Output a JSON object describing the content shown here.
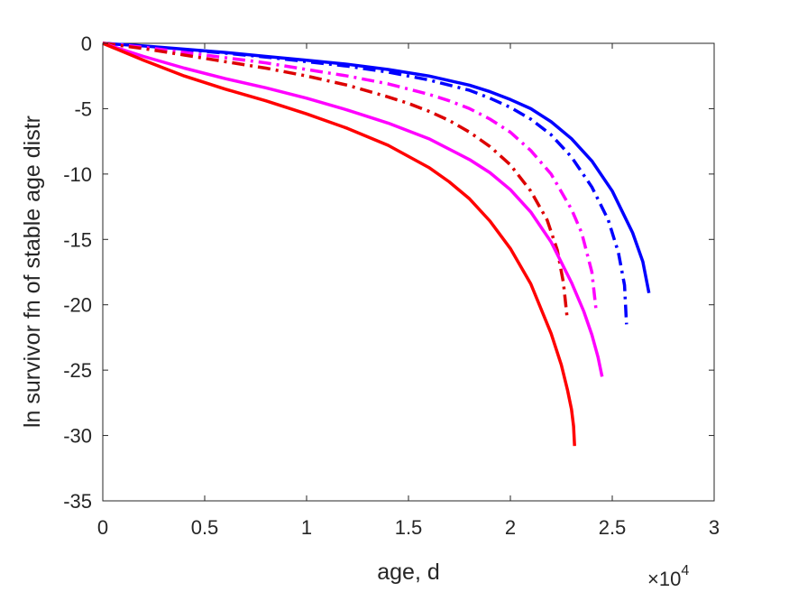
{
  "chart_data": {
    "type": "line",
    "title": "",
    "xlabel": "age, d",
    "ylabel": "ln survivor fn of stable age distr",
    "x_exponent_label": "×10",
    "x_exponent_power": "4",
    "xlim": [
      0,
      30000
    ],
    "ylim": [
      -35,
      0
    ],
    "x_tick_values": [
      0,
      5000,
      10000,
      15000,
      20000,
      25000,
      30000
    ],
    "x_tick_labels": [
      "0",
      "0.5",
      "1",
      "1.5",
      "2",
      "2.5",
      "3"
    ],
    "y_tick_values": [
      0,
      -5,
      -10,
      -15,
      -20,
      -25,
      -30,
      -35
    ],
    "y_tick_labels": [
      "0",
      "-5",
      "-10",
      "-15",
      "-20",
      "-25",
      "-30",
      "-35"
    ],
    "grid": false,
    "legend": "none",
    "series": [
      {
        "color": "#0000ff",
        "style": "solid",
        "x": [
          0,
          2000,
          4000,
          6000,
          8000,
          10000,
          12000,
          14000,
          16000,
          18000,
          19000,
          20000,
          21000,
          22000,
          23000,
          24000,
          25000,
          26000,
          26500,
          26800
        ],
        "y": [
          0,
          -0.2,
          -0.45,
          -0.7,
          -1.0,
          -1.3,
          -1.6,
          -2.0,
          -2.5,
          -3.2,
          -3.7,
          -4.3,
          -5.0,
          -6.0,
          -7.3,
          -9.0,
          -11.3,
          -14.5,
          -16.7,
          -19.1
        ]
      },
      {
        "color": "#0000ff",
        "style": "dashdot",
        "x": [
          0,
          2000,
          4000,
          6000,
          8000,
          10000,
          12000,
          14000,
          16000,
          18000,
          19000,
          20000,
          21000,
          22000,
          23000,
          24000,
          24800,
          25300,
          25600,
          25700
        ],
        "y": [
          0,
          -0.22,
          -0.48,
          -0.75,
          -1.05,
          -1.4,
          -1.75,
          -2.2,
          -2.8,
          -3.6,
          -4.2,
          -4.9,
          -5.8,
          -7.0,
          -8.7,
          -11.0,
          -13.5,
          -16.0,
          -18.5,
          -21.5
        ]
      },
      {
        "color": "#ff00ff",
        "style": "dashdot",
        "x": [
          0,
          2000,
          4000,
          6000,
          8000,
          10000,
          12000,
          14000,
          16000,
          17000,
          18000,
          19000,
          20000,
          21000,
          22000,
          23000,
          23500,
          24000,
          24200
        ],
        "y": [
          0,
          -0.3,
          -0.7,
          -1.1,
          -1.5,
          -2.0,
          -2.5,
          -3.1,
          -3.9,
          -4.4,
          -5.0,
          -5.8,
          -6.8,
          -8.2,
          -10.0,
          -12.7,
          -14.5,
          -17.5,
          -20.3
        ]
      },
      {
        "color": "#dd0000",
        "style": "dashdot",
        "x": [
          0,
          2000,
          4000,
          6000,
          8000,
          10000,
          12000,
          14000,
          15000,
          16000,
          17000,
          18000,
          19000,
          20000,
          21000,
          21800,
          22300,
          22600,
          22800
        ],
        "y": [
          0,
          -0.4,
          -0.9,
          -1.4,
          -1.9,
          -2.5,
          -3.2,
          -4.1,
          -4.6,
          -5.2,
          -5.9,
          -6.8,
          -7.9,
          -9.3,
          -11.3,
          -13.5,
          -15.8,
          -18.3,
          -21.2
        ]
      },
      {
        "color": "#ff00ff",
        "style": "solid",
        "x": [
          0,
          2000,
          4000,
          6000,
          8000,
          10000,
          12000,
          14000,
          16000,
          18000,
          19000,
          20000,
          21000,
          22000,
          23000,
          23600,
          24000,
          24300,
          24500
        ],
        "y": [
          0,
          -1.0,
          -1.9,
          -2.7,
          -3.4,
          -4.2,
          -5.1,
          -6.1,
          -7.3,
          -8.9,
          -9.9,
          -11.2,
          -12.9,
          -15.2,
          -18.3,
          -20.5,
          -22.3,
          -24.0,
          -25.5
        ]
      },
      {
        "color": "#ff0000",
        "style": "solid",
        "x": [
          0,
          2000,
          4000,
          6000,
          8000,
          10000,
          12000,
          14000,
          16000,
          17000,
          18000,
          19000,
          20000,
          21000,
          22000,
          22500,
          22800,
          23000,
          23100,
          23150
        ],
        "y": [
          0,
          -1.3,
          -2.5,
          -3.5,
          -4.4,
          -5.4,
          -6.5,
          -7.8,
          -9.5,
          -10.6,
          -11.9,
          -13.6,
          -15.7,
          -18.4,
          -22.2,
          -24.6,
          -26.5,
          -28.0,
          -29.3,
          -30.8
        ]
      }
    ]
  }
}
